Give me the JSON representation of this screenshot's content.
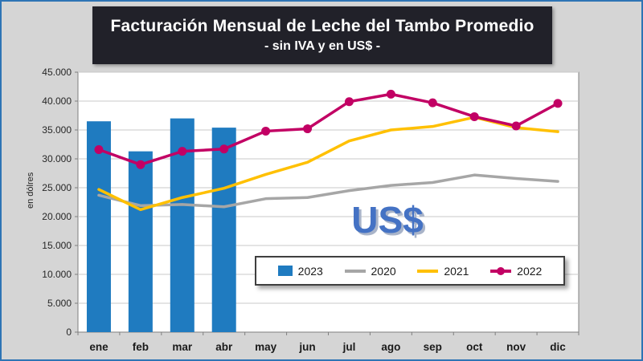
{
  "chart_data": {
    "type": "combo",
    "title": "Facturación Mensual de Leche del Tambo Promedio",
    "subtitle": "- sin IVA y en US$ -",
    "ylabel": "en dólres",
    "annotation": "US$",
    "annotation_color": "#4472C4",
    "ylim": [
      0,
      45000
    ],
    "ytick_step": 5000,
    "grid": true,
    "legend_position": "bottom-center-inside",
    "categories": [
      "ene",
      "feb",
      "mar",
      "abr",
      "may",
      "jun",
      "jul",
      "ago",
      "sep",
      "oct",
      "nov",
      "dic"
    ],
    "series": [
      {
        "name": "2023",
        "type": "bar",
        "color": "#1F7BC0",
        "values": [
          36500,
          31300,
          37000,
          35400,
          null,
          null,
          null,
          null,
          null,
          null,
          null,
          null
        ]
      },
      {
        "name": "2020",
        "type": "line",
        "color": "#A6A6A6",
        "values": [
          23700,
          21900,
          22100,
          21700,
          23100,
          23300,
          24500,
          25400,
          25900,
          27200,
          26600,
          26100
        ]
      },
      {
        "name": "2021",
        "type": "line",
        "color": "#FFC000",
        "values": [
          24700,
          21200,
          23300,
          24900,
          27300,
          29400,
          33100,
          35000,
          35600,
          37200,
          35400,
          34700
        ]
      },
      {
        "name": "2022",
        "type": "line",
        "color": "#C20064",
        "marker": true,
        "values": [
          31600,
          29000,
          31300,
          31700,
          34800,
          35200,
          39900,
          41200,
          39700,
          37300,
          35700,
          39600
        ]
      }
    ]
  }
}
